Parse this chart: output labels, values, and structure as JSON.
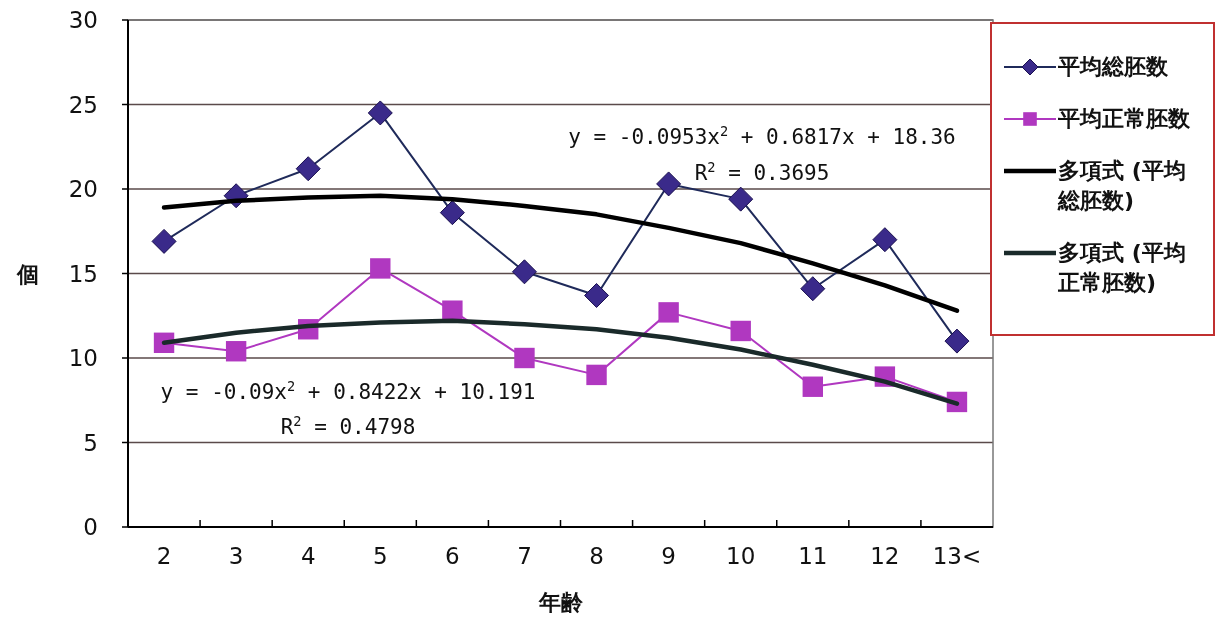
{
  "chart_data": {
    "type": "line",
    "xlabel": "年齢",
    "ylabel": "個",
    "categories": [
      "2",
      "3",
      "4",
      "5",
      "6",
      "7",
      "8",
      "9",
      "10",
      "11",
      "12",
      "13<"
    ],
    "series": [
      {
        "name": "平均総胚数",
        "color": "#3a2a8a",
        "marker": "diamond",
        "values": [
          16.9,
          19.6,
          21.2,
          24.5,
          18.6,
          15.1,
          13.7,
          20.3,
          19.4,
          14.1,
          17.0,
          11.0
        ]
      },
      {
        "name": "平均正常胚数",
        "color": "#b038c0",
        "marker": "square",
        "values": [
          10.9,
          10.4,
          11.7,
          15.3,
          12.8,
          10.0,
          9.0,
          12.7,
          11.6,
          8.3,
          8.9,
          7.4
        ]
      },
      {
        "name": "多項式 (平均総胚数)",
        "color": "#000000",
        "marker": "none",
        "values": [
          18.9,
          19.3,
          19.5,
          19.6,
          19.4,
          19.0,
          18.5,
          17.7,
          16.8,
          15.6,
          14.3,
          12.8
        ]
      },
      {
        "name": "多項式 (平均正常胚数)",
        "color": "#1a2a2a",
        "marker": "none",
        "values": [
          10.9,
          11.5,
          11.9,
          12.1,
          12.2,
          12.0,
          11.7,
          11.2,
          10.5,
          9.6,
          8.6,
          7.3
        ]
      }
    ],
    "ylim": [
      0,
      30
    ],
    "yticks": [
      0,
      5,
      10,
      15,
      20,
      25,
      30
    ],
    "grid": "y",
    "legend": "right",
    "annotations": [
      "y = -0.0953x$^{2}$ + 0.6817x + 18.36",
      "R$^{2}$ = 0.3695",
      "y = -0.09x$^{2}$ + 0.8422x + 10.191",
      "R$^{2}$ = 0.4798"
    ]
  }
}
